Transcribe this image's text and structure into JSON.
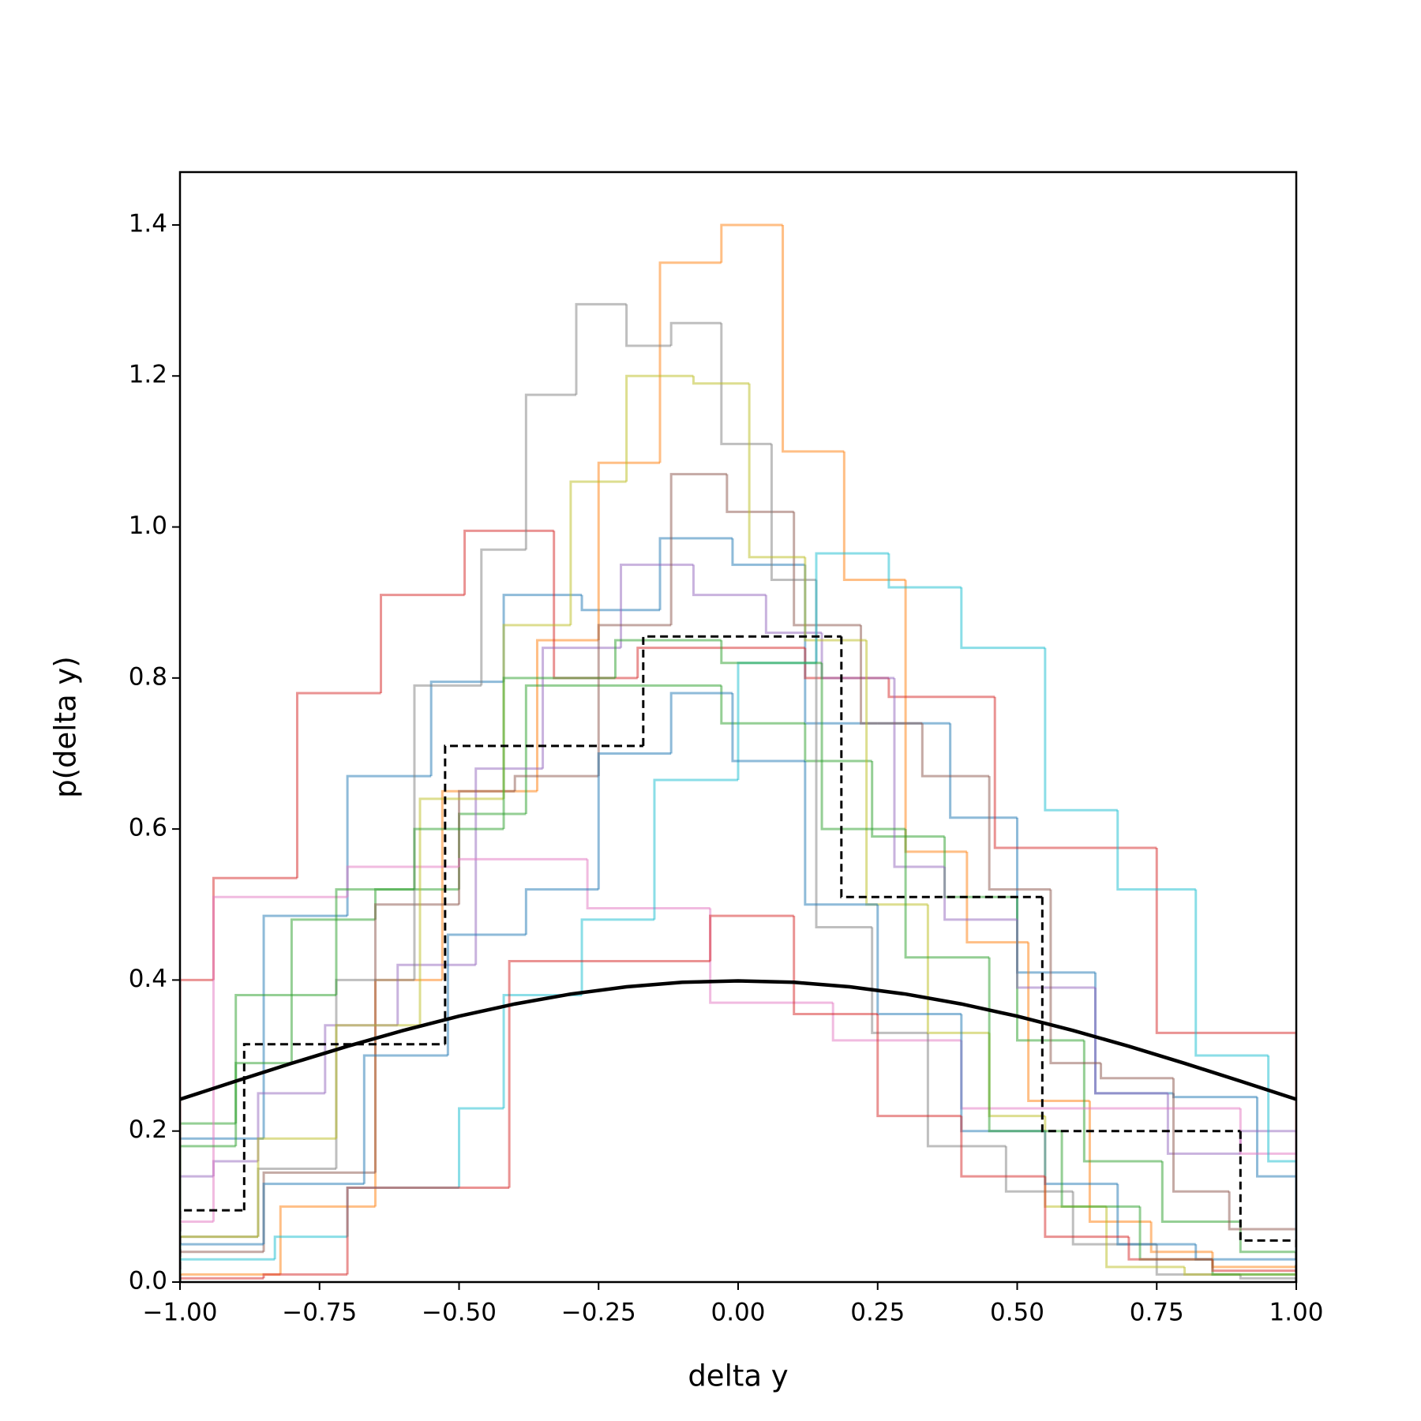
{
  "chart_data": {
    "type": "histogram",
    "xlabel": "delta y",
    "ylabel": "p(delta y)",
    "xlim": [
      -1,
      1
    ],
    "ylim": [
      0,
      1.47
    ],
    "xticks": [
      {
        "value": -1,
        "label": "−1.00"
      },
      {
        "value": -0.75,
        "label": "−0.75"
      },
      {
        "value": -0.5,
        "label": "−0.50"
      },
      {
        "value": -0.25,
        "label": "−0.25"
      },
      {
        "value": 0,
        "label": "0.00"
      },
      {
        "value": 0.25,
        "label": "0.25"
      },
      {
        "value": 0.5,
        "label": "0.50"
      },
      {
        "value": 0.75,
        "label": "0.75"
      },
      {
        "value": 1,
        "label": "1.00"
      }
    ],
    "yticks": [
      {
        "value": 0,
        "label": "0.0"
      },
      0.2,
      0.4,
      0.6,
      0.8,
      {
        "value": 1,
        "label": "1.0"
      },
      1.2,
      1.4
    ],
    "series": [
      {
        "color": "#1f77b4",
        "bins": [
          -1,
          -0.85,
          -0.7,
          -0.55,
          -0.42,
          -0.28,
          -0.14,
          -0.01,
          0.12,
          0.25,
          0.38,
          0.5,
          0.64,
          0.78,
          0.93,
          1.0
        ],
        "values": [
          0.19,
          0.485,
          0.67,
          0.795,
          0.91,
          0.89,
          0.985,
          0.95,
          0.74,
          0.74,
          0.615,
          0.41,
          0.25,
          0.245,
          0.14
        ]
      },
      {
        "color": "#ff7f0e",
        "bins": [
          -1,
          -0.82,
          -0.65,
          -0.53,
          -0.36,
          -0.25,
          -0.14,
          -0.03,
          0.08,
          0.19,
          0.3,
          0.41,
          0.52,
          0.63,
          0.74,
          0.85,
          1.0
        ],
        "values": [
          0.01,
          0.1,
          0.4,
          0.65,
          0.85,
          1.085,
          1.35,
          1.4,
          1.1,
          0.93,
          0.57,
          0.45,
          0.24,
          0.08,
          0.04,
          0.02
        ]
      },
      {
        "color": "#2ca02c",
        "bins": [
          -1,
          -0.9,
          -0.8,
          -0.65,
          -0.5,
          -0.38,
          -0.22,
          -0.03,
          0.12,
          0.24,
          0.37,
          0.5,
          0.62,
          0.76,
          0.9,
          1.0
        ],
        "values": [
          0.21,
          0.29,
          0.48,
          0.52,
          0.62,
          0.79,
          0.79,
          0.74,
          0.69,
          0.59,
          0.51,
          0.32,
          0.16,
          0.08,
          0.04
        ]
      },
      {
        "color": "#d62728",
        "bins": [
          -1,
          -0.94,
          -0.79,
          -0.64,
          -0.49,
          -0.33,
          -0.18,
          -0.03,
          0.12,
          0.27,
          0.46,
          0.75,
          1.0
        ],
        "values": [
          0.4,
          0.535,
          0.78,
          0.91,
          0.995,
          0.8,
          0.84,
          0.84,
          0.8,
          0.775,
          0.575,
          0.33
        ]
      },
      {
        "color": "#9467bd",
        "bins": [
          -1,
          -0.94,
          -0.86,
          -0.74,
          -0.61,
          -0.47,
          -0.35,
          -0.21,
          -0.08,
          0.05,
          0.15,
          0.28,
          0.37,
          0.5,
          0.64,
          0.77,
          0.9,
          1.0
        ],
        "values": [
          0.14,
          0.16,
          0.25,
          0.34,
          0.42,
          0.68,
          0.84,
          0.95,
          0.91,
          0.86,
          0.8,
          0.55,
          0.48,
          0.39,
          0.25,
          0.17,
          0.2
        ]
      },
      {
        "color": "#8c564b",
        "bins": [
          -1,
          -0.85,
          -0.65,
          -0.5,
          -0.4,
          -0.25,
          -0.12,
          -0.02,
          0.1,
          0.22,
          0.33,
          0.45,
          0.56,
          0.65,
          0.78,
          0.88,
          1.0
        ],
        "values": [
          0.04,
          0.145,
          0.5,
          0.65,
          0.67,
          0.87,
          1.07,
          1.02,
          0.87,
          0.74,
          0.67,
          0.52,
          0.29,
          0.27,
          0.12,
          0.07
        ]
      },
      {
        "color": "#e377c2",
        "bins": [
          -1,
          -0.94,
          -0.7,
          -0.5,
          -0.27,
          -0.05,
          0.17,
          0.4,
          0.9,
          1.0
        ],
        "values": [
          0.08,
          0.51,
          0.55,
          0.56,
          0.495,
          0.37,
          0.32,
          0.23,
          0.17
        ]
      },
      {
        "color": "#7f7f7f",
        "bins": [
          -1,
          -0.86,
          -0.72,
          -0.58,
          -0.46,
          -0.38,
          -0.29,
          -0.2,
          -0.12,
          -0.03,
          0.06,
          0.14,
          0.24,
          0.34,
          0.48,
          0.6,
          0.75,
          0.9,
          1.0
        ],
        "values": [
          0.06,
          0.15,
          0.4,
          0.79,
          0.97,
          1.175,
          1.295,
          1.24,
          1.27,
          1.11,
          0.93,
          0.47,
          0.33,
          0.18,
          0.12,
          0.05,
          0.01,
          0.005
        ]
      },
      {
        "color": "#bcbd22",
        "bins": [
          -1,
          -0.86,
          -0.72,
          -0.57,
          -0.42,
          -0.3,
          -0.2,
          -0.08,
          0.02,
          0.12,
          0.23,
          0.34,
          0.45,
          0.55,
          0.66,
          0.8,
          1.0
        ],
        "values": [
          0.06,
          0.19,
          0.34,
          0.64,
          0.87,
          1.06,
          1.2,
          1.19,
          0.96,
          0.85,
          0.5,
          0.33,
          0.22,
          0.1,
          0.02,
          0.01
        ]
      },
      {
        "color": "#17becf",
        "bins": [
          -1,
          -0.83,
          -0.7,
          -0.5,
          -0.42,
          -0.28,
          -0.15,
          0,
          0.14,
          0.27,
          0.4,
          0.55,
          0.68,
          0.82,
          0.95,
          1.0
        ],
        "values": [
          0.03,
          0.06,
          0.125,
          0.23,
          0.38,
          0.48,
          0.665,
          0.82,
          0.965,
          0.92,
          0.84,
          0.625,
          0.52,
          0.3,
          0.16
        ]
      },
      {
        "color": "#1f77b4",
        "bins": [
          -1,
          -0.85,
          -0.67,
          -0.52,
          -0.38,
          -0.25,
          -0.12,
          -0.01,
          0.12,
          0.25,
          0.4,
          0.55,
          0.68,
          0.82,
          1.0
        ],
        "values": [
          0.05,
          0.13,
          0.3,
          0.46,
          0.52,
          0.7,
          0.78,
          0.69,
          0.5,
          0.355,
          0.2,
          0.13,
          0.05,
          0.03
        ]
      },
      {
        "color": "#2ca02c",
        "bins": [
          -1,
          -0.9,
          -0.72,
          -0.58,
          -0.42,
          -0.22,
          -0.03,
          0.15,
          0.3,
          0.45,
          0.58,
          0.72,
          0.85,
          1.0
        ],
        "values": [
          0.18,
          0.38,
          0.52,
          0.6,
          0.8,
          0.85,
          0.82,
          0.6,
          0.43,
          0.2,
          0.1,
          0.03,
          0.01
        ]
      },
      {
        "color": "#d62728",
        "bins": [
          -1,
          -0.85,
          -0.7,
          -0.41,
          -0.05,
          0.1,
          0.25,
          0.4,
          0.55,
          0.7,
          0.85,
          1.0
        ],
        "values": [
          0.005,
          0.01,
          0.125,
          0.425,
          0.485,
          0.355,
          0.22,
          0.14,
          0.06,
          0.03,
          0.015
        ]
      },
      {
        "color": "#000000",
        "linestyle": "dashed",
        "bins": [
          -1,
          -0.885,
          -0.525,
          -0.17,
          0.185,
          0.545,
          0.9,
          1.0
        ],
        "values": [
          0.095,
          0.315,
          0.71,
          0.855,
          0.51,
          0.2,
          0.055
        ]
      }
    ],
    "curve": {
      "color": "#000000",
      "x": [
        -1,
        -0.9,
        -0.8,
        -0.7,
        -0.6,
        -0.5,
        -0.4,
        -0.3,
        -0.2,
        -0.1,
        0,
        0.1,
        0.2,
        0.3,
        0.4,
        0.5,
        0.6,
        0.7,
        0.8,
        0.9,
        1
      ],
      "values": [
        0.242,
        0.2661,
        0.2897,
        0.3123,
        0.3332,
        0.3521,
        0.3683,
        0.3814,
        0.391,
        0.397,
        0.3989,
        0.397,
        0.391,
        0.3814,
        0.3683,
        0.3521,
        0.3332,
        0.3123,
        0.2897,
        0.2661,
        0.242
      ]
    }
  }
}
